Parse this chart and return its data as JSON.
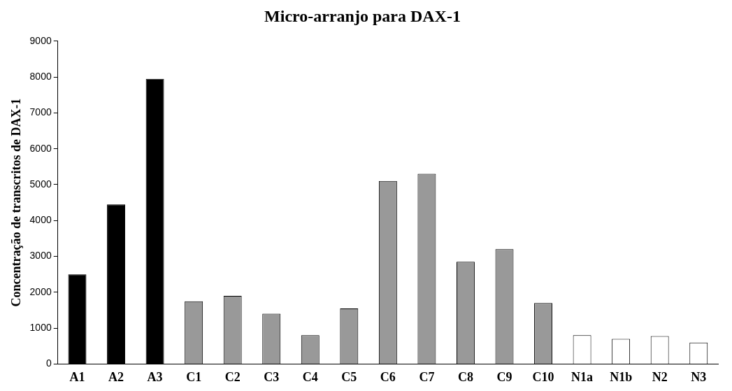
{
  "chart_data": {
    "type": "bar",
    "title": "Micro-arranjo para DAX-1",
    "ylabel": "Concentração de transcritos de DAX-1",
    "categories": [
      "A1",
      "A2",
      "A3",
      "C1",
      "C2",
      "C3",
      "C4",
      "C5",
      "C6",
      "C7",
      "C8",
      "C9",
      "C10",
      "N1a",
      "N1b",
      "N2",
      "N3"
    ],
    "values": [
      2500,
      4450,
      7950,
      1750,
      1900,
      1400,
      800,
      1550,
      5100,
      5300,
      2850,
      3200,
      1700,
      800,
      700,
      780,
      600
    ],
    "colors": [
      "#000000",
      "#000000",
      "#000000",
      "#999999",
      "#999999",
      "#999999",
      "#999999",
      "#999999",
      "#999999",
      "#999999",
      "#999999",
      "#999999",
      "#999999",
      "#ffffff",
      "#ffffff",
      "#ffffff",
      "#ffffff"
    ],
    "ylim": [
      0,
      9000
    ],
    "yticks": [
      0,
      1000,
      2000,
      3000,
      4000,
      5000,
      6000,
      7000,
      8000,
      9000
    ],
    "grid": false,
    "legend": false
  }
}
